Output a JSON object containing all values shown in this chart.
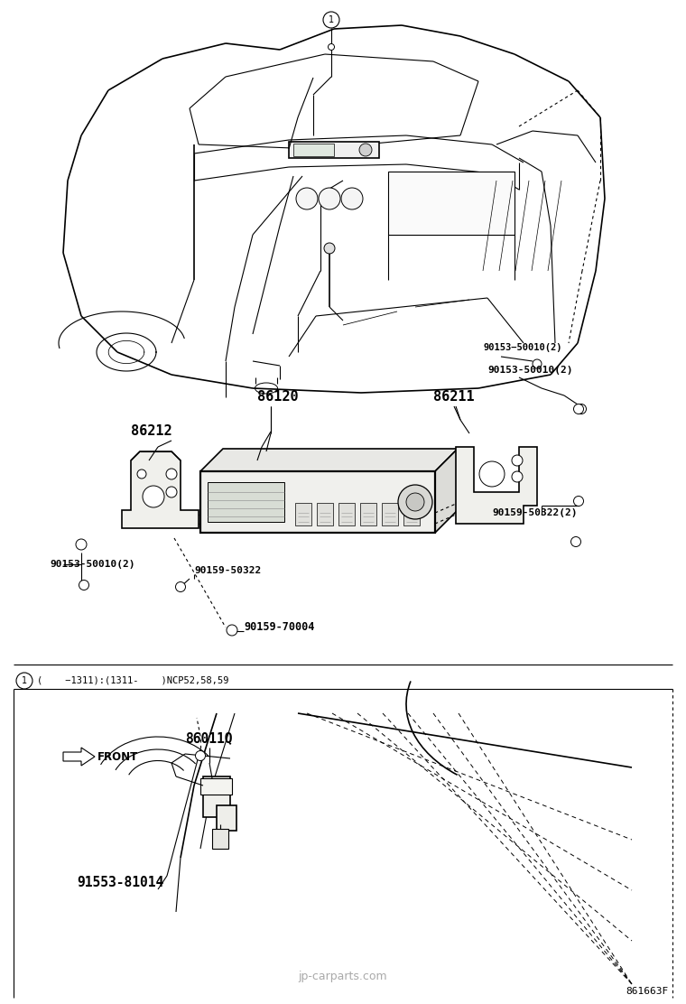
{
  "bg_color": "#ffffff",
  "watermark": "jp-carparts.com",
  "part_number_bottom_right": "861663F",
  "labels": {
    "part1": "86120",
    "part2": "86211",
    "part3": "86212",
    "part4_a": "90153-50010(2)",
    "part4_b": "90153-50010(2)",
    "part5_a": "90159-50322(2)",
    "part5_b": "90159-50322",
    "part6": "90159-70004",
    "part7": "86011Q",
    "part8": "91553-81014",
    "note1": "(    -1311):(1311-    )NCP52,58,59",
    "front_label": "FRONT"
  }
}
